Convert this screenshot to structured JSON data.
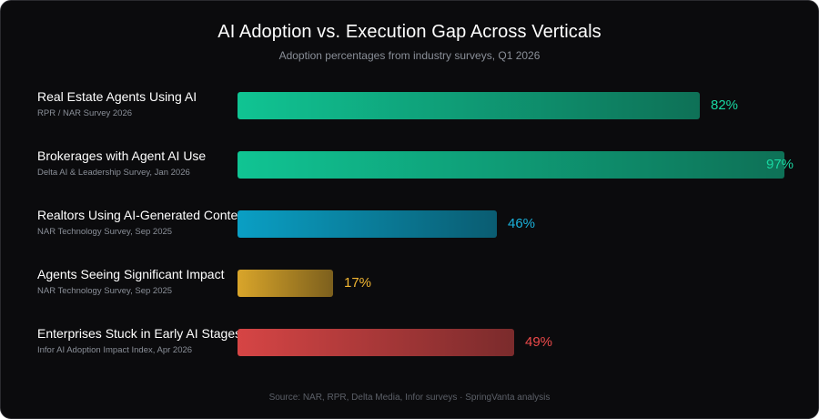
{
  "chart_data": {
    "type": "bar",
    "orientation": "horizontal",
    "title": "AI Adoption vs. Execution Gap Across Verticals",
    "subtitle": "Adoption percentages from industry surveys, Q1 2026",
    "xlim": [
      0,
      100
    ],
    "value_suffix": "%",
    "categories": [
      "Real Estate Agents Using AI",
      "Brokerages with Agent AI Use",
      "Realtors Using AI-Generated Content",
      "Agents Seeing Significant Impact",
      "Enterprises Stuck in Early AI Stages"
    ],
    "sources": [
      "RPR / NAR Survey 2026",
      "Delta AI & Leadership Survey, Jan 2026",
      "NAR Technology Survey, Sep 2025",
      "NAR Technology Survey, Sep 2025",
      "Infor AI Adoption Impact Index, Apr 2026"
    ],
    "values": [
      82,
      97,
      46,
      17,
      49
    ],
    "value_labels": [
      "82%",
      "97%",
      "46%",
      "17%",
      "49%"
    ],
    "colors": [
      "#10c493",
      "#10c493",
      "#0a9fc4",
      "#d9a52a",
      "#d64545"
    ],
    "label_colors": [
      "#19d8a2",
      "#19d8a2",
      "#1ab2dc",
      "#f2b632",
      "#ec4a4a"
    ],
    "footer": "Source: NAR, RPR, Delta Media, Infor surveys · SpringVanta analysis"
  }
}
